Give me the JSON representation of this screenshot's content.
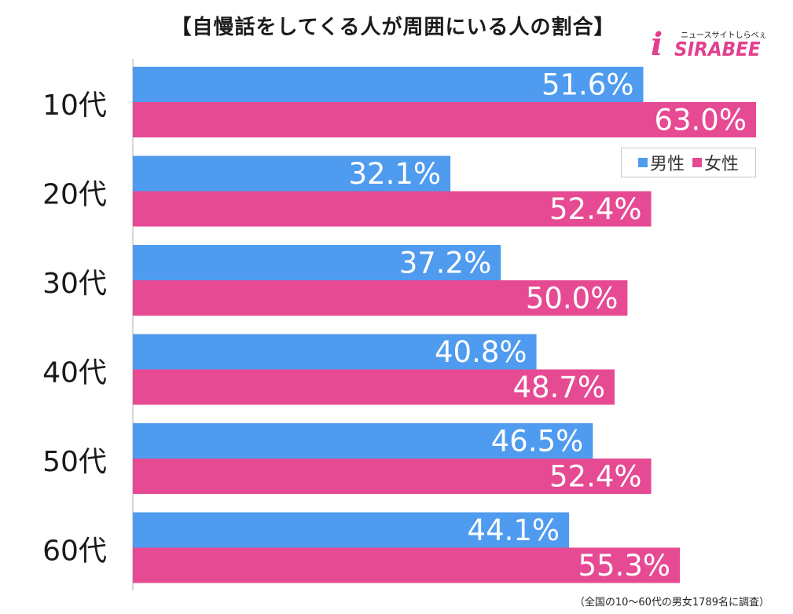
{
  "title": "【自慢話をしてくる人が周囲にいる人の割合】",
  "logo": {
    "tagline": "ニュースサイトしらべぇ",
    "word": "SIRABEE",
    "icon": "i"
  },
  "footnote": "（全国の10〜60代の男女1789名に調査）",
  "colors": {
    "male": "#4f9bef",
    "female": "#e64a93",
    "axis": "#b0b0b0",
    "brand": "#e2408f"
  },
  "chart_data": {
    "type": "bar",
    "orientation": "horizontal",
    "categories": [
      "10代",
      "20代",
      "30代",
      "40代",
      "50代",
      "60代"
    ],
    "series": [
      {
        "name": "男性",
        "values": [
          51.6,
          32.1,
          37.2,
          40.8,
          46.5,
          44.1
        ],
        "labels": [
          "51.6%",
          "32.1%",
          "37.2%",
          "40.8%",
          "46.5%",
          "44.1%"
        ]
      },
      {
        "name": "女性",
        "values": [
          63.0,
          52.4,
          50.0,
          48.7,
          52.4,
          55.3
        ],
        "labels": [
          "63.0%",
          "52.4%",
          "50.0%",
          "48.7%",
          "52.4%",
          "55.3%"
        ]
      }
    ],
    "xlim": [
      0,
      63.0
    ],
    "legend": "right",
    "grid": false
  }
}
